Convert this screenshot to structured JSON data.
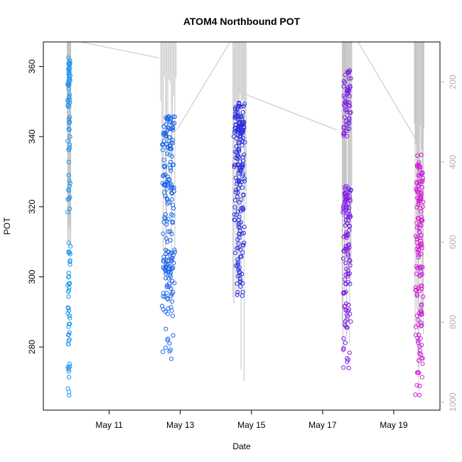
{
  "chart_data": {
    "type": "scatter",
    "title": "ATOM4 Northbound POT",
    "xlabel": "Date",
    "ylabel": "POT",
    "y_left_ticks": [
      280,
      300,
      320,
      340,
      360
    ],
    "y_left_range": [
      262,
      367
    ],
    "y_right_ticks": [
      200,
      400,
      600,
      800,
      1000
    ],
    "y_right_range": [
      1020,
      100
    ],
    "x_ticks": [
      {
        "day": 11,
        "label": "May 11"
      },
      {
        "day": 13,
        "label": "May 13"
      },
      {
        "day": 15,
        "label": "May 15"
      },
      {
        "day": 17,
        "label": "May 17"
      },
      {
        "day": 19,
        "label": "May 19"
      }
    ],
    "x_range_days": [
      9.15,
      20.3
    ],
    "colors": {
      "palette": [
        "#19a5f0",
        "#1a64ee",
        "#2b2bdd",
        "#8a1de8",
        "#e81ccf"
      ],
      "depth_line": "#c4c4c4",
      "axis": "#000000",
      "right_axis": "#b0b0b0"
    },
    "casts": [
      {
        "name": "cast-may10",
        "x_range": [
          9.82,
          9.92
        ],
        "pot_clusters": [
          [
            264,
            288,
            12
          ],
          [
            278,
            297,
            18
          ],
          [
            296,
            312,
            18
          ],
          [
            318,
            333,
            12
          ],
          [
            336,
            346,
            12
          ],
          [
            348,
            364,
            36
          ]
        ],
        "depth_profile": [
          100,
          120,
          300,
          540
        ],
        "color_range": [
          0,
          0.12
        ]
      },
      {
        "name": "cast-may12",
        "x_range": [
          12.45,
          12.88
        ],
        "pot_clusters": [
          [
            276,
            290,
            12
          ],
          [
            290,
            300,
            25
          ],
          [
            300,
            308,
            40
          ],
          [
            308,
            326,
            35
          ],
          [
            326,
            336,
            30
          ],
          [
            336,
            346,
            50
          ]
        ],
        "depth_profile": [
          100,
          180,
          350,
          600,
          750
        ],
        "color_range": [
          0.18,
          0.32
        ]
      },
      {
        "name": "cast-may14",
        "x_range": [
          14.48,
          14.85
        ],
        "pot_clusters": [
          [
            294,
            302,
            15
          ],
          [
            302,
            315,
            30
          ],
          [
            315,
            330,
            40
          ],
          [
            330,
            340,
            40
          ],
          [
            340,
            345,
            50
          ],
          [
            345,
            350,
            25
          ]
        ],
        "depth_profile": [
          100,
          200,
          450,
          700,
          880
        ],
        "color_range": [
          0.42,
          0.55
        ]
      },
      {
        "name": "cast-may17",
        "x_range": [
          17.55,
          17.82
        ],
        "pot_clusters": [
          [
            274,
            290,
            20
          ],
          [
            290,
            305,
            30
          ],
          [
            305,
            318,
            35
          ],
          [
            318,
            326,
            40
          ],
          [
            340,
            349,
            25
          ],
          [
            349,
            359,
            30
          ]
        ],
        "depth_profile": [
          100,
          200,
          450,
          650,
          800
        ],
        "color_range": [
          0.65,
          0.78
        ]
      },
      {
        "name": "cast-may19",
        "x_range": [
          19.58,
          19.85
        ],
        "pot_clusters": [
          [
            264,
            280,
            15
          ],
          [
            280,
            295,
            25
          ],
          [
            295,
            310,
            35
          ],
          [
            310,
            322,
            30
          ],
          [
            322,
            330,
            30
          ],
          [
            330,
            335,
            10
          ]
        ],
        "depth_profile": [
          100,
          300,
          550,
          750,
          900
        ],
        "color_range": [
          0.85,
          1.0
        ]
      }
    ],
    "connectors": [
      {
        "from": [
          10.2,
          100
        ],
        "to": [
          12.4,
          140
        ]
      },
      {
        "from": [
          12.9,
          320
        ],
        "to": [
          14.4,
          100
        ]
      },
      {
        "from": [
          14.8,
          230
        ],
        "to": [
          17.4,
          320
        ]
      },
      {
        "from": [
          18.0,
          100
        ],
        "to": [
          19.6,
          340
        ]
      }
    ]
  }
}
